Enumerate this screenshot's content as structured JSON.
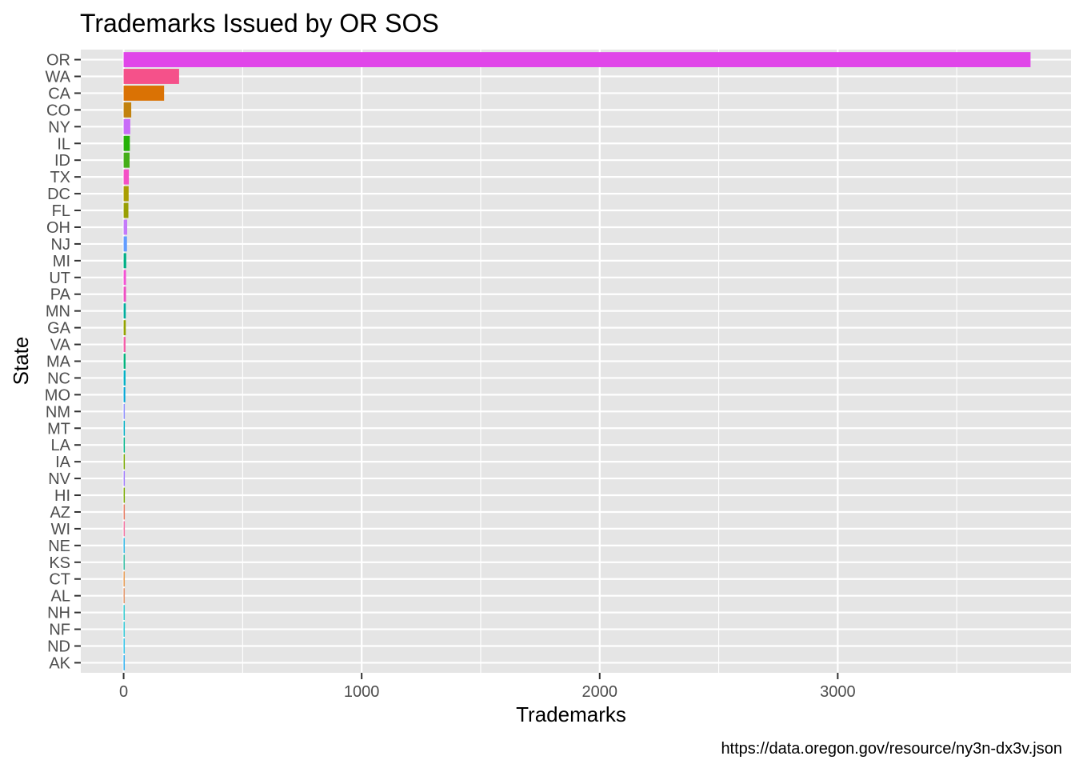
{
  "chart_data": {
    "type": "bar",
    "orientation": "horizontal",
    "title": "Trademarks Issued by OR SOS",
    "xlabel": "Trademarks",
    "ylabel": "State",
    "caption": "https://data.oregon.gov/resource/ny3n-dx3v.json",
    "xlim": [
      -180,
      3980
    ],
    "x_ticks": [
      0,
      1000,
      2000,
      3000
    ],
    "x_tick_labels": [
      "0",
      "1000",
      "2000",
      "3000"
    ],
    "legend": "none",
    "grid": true,
    "categories": [
      "OR",
      "WA",
      "CA",
      "CO",
      "NY",
      "IL",
      "ID",
      "TX",
      "DC",
      "FL",
      "OH",
      "NJ",
      "MI",
      "UT",
      "PA",
      "MN",
      "GA",
      "VA",
      "MA",
      "NC",
      "MO",
      "NM",
      "MT",
      "LA",
      "IA",
      "NV",
      "HI",
      "AZ",
      "WI",
      "NE",
      "KS",
      "CT",
      "AL",
      "NH",
      "NF",
      "ND",
      "AK"
    ],
    "values": [
      3810,
      233,
      170,
      32,
      28,
      26,
      25,
      22,
      21,
      20,
      15,
      14,
      11,
      10,
      10,
      9,
      9,
      8,
      8,
      8,
      7,
      5,
      5,
      5,
      5,
      5,
      5,
      5,
      5,
      4,
      4,
      4,
      4,
      2,
      2,
      2,
      2
    ],
    "colors": [
      "#E046E9",
      "#F5518A",
      "#DA7204",
      "#C2820E",
      "#C86BF8",
      "#25B107",
      "#45AE18",
      "#F450C6",
      "#AA9E02",
      "#999F04",
      "#C47AF9",
      "#619CFF",
      "#00B086",
      "#F453D4",
      "#EE4FC3",
      "#00AE9E",
      "#94A300",
      "#F45CA8",
      "#00B47C",
      "#00B1C6",
      "#00A5D6",
      "#8F90FF",
      "#00AFC6",
      "#00B58A",
      "#7AA901",
      "#A07CFE",
      "#7AA900",
      "#E77A60",
      "#F474A2",
      "#00A9E2",
      "#00AF8E",
      "#E5862C",
      "#DF7D46",
      "#00C0C7",
      "#00BFD0",
      "#00B8E7",
      "#00A1F0"
    ]
  }
}
